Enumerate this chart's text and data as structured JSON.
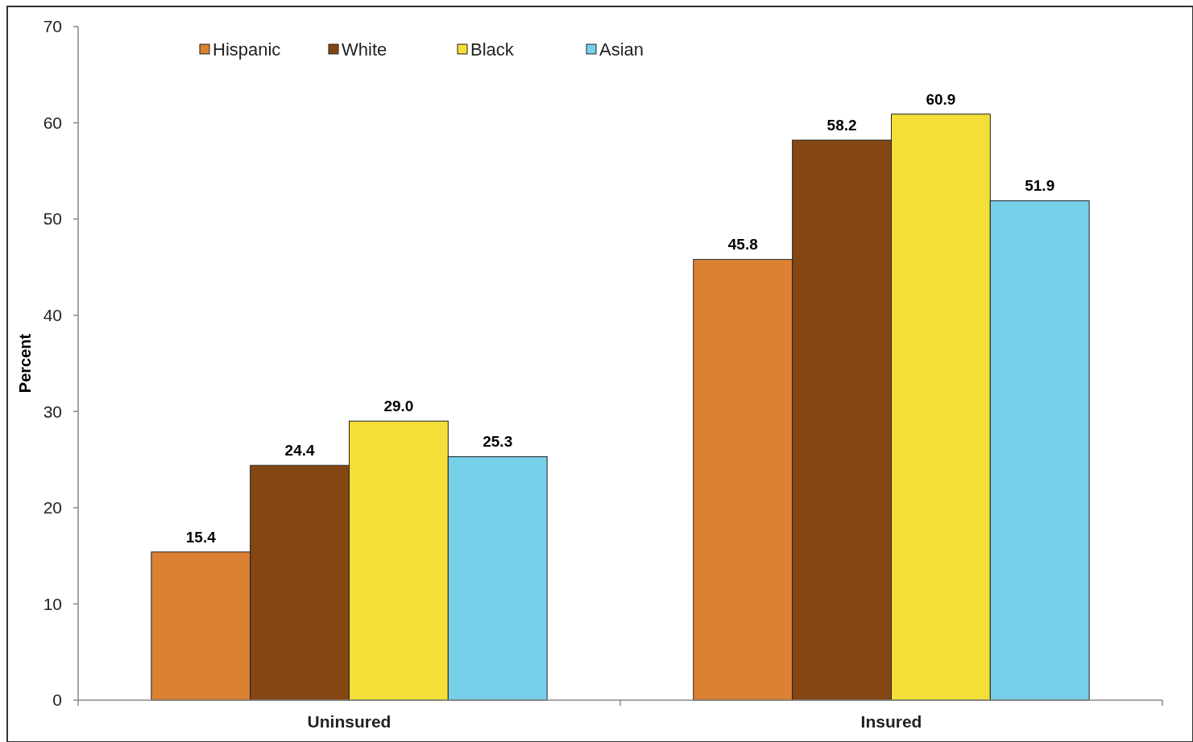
{
  "chart_data": {
    "type": "bar",
    "ylabel": "Percent",
    "categories": [
      "Uninsured",
      "Insured"
    ],
    "series": [
      {
        "name": "Hispanic",
        "color": "#dc8133",
        "values": [
          15.4,
          45.8
        ],
        "value_labels": [
          "15.4",
          "45.8"
        ]
      },
      {
        "name": "White",
        "color": "#844613",
        "values": [
          24.4,
          58.2
        ],
        "value_labels": [
          "24.4",
          "58.2"
        ]
      },
      {
        "name": "Black",
        "color": "#f3df37",
        "values": [
          29.0,
          60.9
        ],
        "value_labels": [
          "29.0",
          "60.9"
        ]
      },
      {
        "name": "Asian",
        "color": "#77d0ea",
        "values": [
          25.3,
          51.9
        ],
        "value_labels": [
          "25.3",
          "51.9"
        ]
      }
    ],
    "ylim": [
      0,
      70
    ],
    "yticks": [
      0,
      10,
      20,
      30,
      40,
      50,
      60,
      70
    ],
    "legend": "top left"
  }
}
